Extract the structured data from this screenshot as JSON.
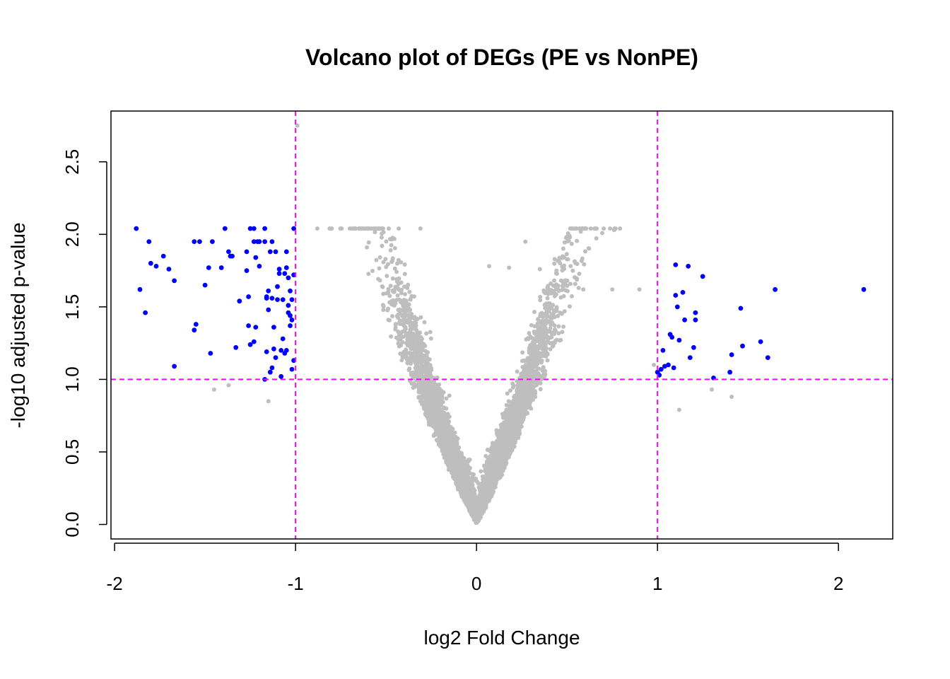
{
  "chart_data": {
    "type": "scatter",
    "title": "Volcano plot of DEGs (PE vs NonPE)",
    "xlabel": "log2 Fold Change",
    "ylabel": "-log10 adjusted p-value",
    "xlim": [
      -2.02,
      2.3
    ],
    "ylim": [
      -0.1,
      2.85
    ],
    "xticks": [
      -2,
      -1,
      0,
      1,
      2
    ],
    "xtick_labels": [
      "-2",
      "-1",
      "0",
      "1",
      "2"
    ],
    "yticks": [
      0.0,
      0.5,
      1.0,
      1.5,
      2.0,
      2.5
    ],
    "ytick_labels": [
      "0.0",
      "0.5",
      "1.0",
      "1.5",
      "2.0",
      "2.5"
    ],
    "grid": false,
    "legend": "none",
    "threshold_lines": {
      "vertical": [
        -1,
        1
      ],
      "horizontal": [
        1.0
      ],
      "color": "#ff00ff",
      "style": "dashed"
    },
    "colors": {
      "significant": "#0000ff",
      "non_significant": "#bebebe",
      "threshold": "#ff00ff"
    },
    "series": [
      {
        "color": "#0000ff",
        "x": [
          -1.88,
          -1.86,
          -1.83,
          -1.81,
          -1.8,
          -1.77,
          -1.73,
          -1.7,
          -1.67,
          -1.67,
          -1.55,
          -1.56,
          -1.56,
          -1.53,
          -1.5,
          -1.48,
          -1.47,
          -1.46,
          -1.41,
          -1.39,
          -1.36,
          -1.37,
          -1.35,
          -1.33,
          -1.31,
          -1.27,
          -1.27,
          -1.26,
          -1.26,
          -1.25,
          -1.23,
          -1.23,
          -1.22,
          -1.21,
          -1.2,
          -1.17,
          -1.17,
          -1.16,
          -1.16,
          -1.15,
          -1.15,
          -1.14,
          -1.13,
          -1.12,
          -1.12,
          -1.11,
          -1.1,
          -1.09,
          -1.08,
          -1.07,
          -1.07,
          -1.06,
          -1.05,
          -1.05,
          -1.04,
          -1.04,
          -1.03,
          -1.03,
          -1.02,
          -1.02,
          -1.02,
          -1.01,
          -1.01,
          -1.01,
          -1.23,
          -1.2,
          -1.25,
          -1.17,
          -1.13,
          -1.11,
          -1.09,
          -1.05,
          -1.03,
          -1.13,
          -1.08,
          -1.06,
          -1.22,
          -1.16,
          -1.14,
          -1.1,
          -1.04,
          1.0,
          1.01,
          1.02,
          1.03,
          1.04,
          1.06,
          1.07,
          1.08,
          1.09,
          1.1,
          1.1,
          1.11,
          1.12,
          1.14,
          1.15,
          1.17,
          1.18,
          1.2,
          1.21,
          1.21,
          1.25,
          1.31,
          1.4,
          1.41,
          1.46,
          1.47,
          1.57,
          1.61,
          1.65,
          2.14
        ],
        "y": [
          2.04,
          1.62,
          1.46,
          1.95,
          1.8,
          1.78,
          1.85,
          1.76,
          1.68,
          1.09,
          1.38,
          1.34,
          1.95,
          1.95,
          1.65,
          1.77,
          1.18,
          1.95,
          1.77,
          2.04,
          1.85,
          1.88,
          1.85,
          1.22,
          1.54,
          1.88,
          1.75,
          1.57,
          1.37,
          2.04,
          1.95,
          1.26,
          1.36,
          1.95,
          1.78,
          1.0,
          1.95,
          1.57,
          1.56,
          1.61,
          1.48,
          1.88,
          1.56,
          1.36,
          1.21,
          1.15,
          1.55,
          1.76,
          1.2,
          1.28,
          1.55,
          1.73,
          1.2,
          1.77,
          1.46,
          1.7,
          1.37,
          1.44,
          1.41,
          1.07,
          1.55,
          2.04,
          1.72,
          1.13,
          2.04,
          1.95,
          1.24,
          2.04,
          1.95,
          1.88,
          1.73,
          1.88,
          1.61,
          1.08,
          1.02,
          1.18,
          1.84,
          1.19,
          1.05,
          1.64,
          1.51,
          1.05,
          1.03,
          1.07,
          1.2,
          1.09,
          1.1,
          1.31,
          1.29,
          1.08,
          1.58,
          1.79,
          1.5,
          1.27,
          1.6,
          1.41,
          1.78,
          1.15,
          1.22,
          1.46,
          1.41,
          1.71,
          1.01,
          1.05,
          1.17,
          1.49,
          1.23,
          1.26,
          1.15,
          1.62,
          1.62
        ]
      },
      {
        "color": "#bebebe",
        "generated": true,
        "count": 5200,
        "description": "non-significant genes"
      }
    ]
  }
}
